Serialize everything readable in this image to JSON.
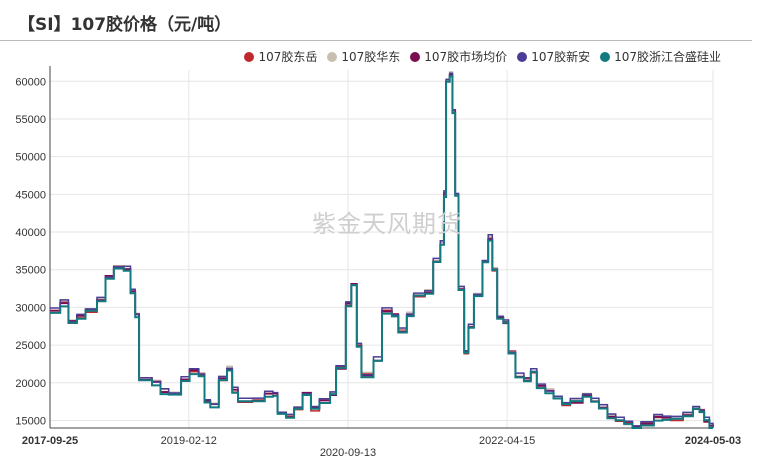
{
  "title": "【SI】107胶价格（元/吨）",
  "watermark": "紫金天风期货",
  "colors": {
    "grid": "#e6e6e6",
    "axis": "#444444",
    "tick_text": "#333333"
  },
  "chart_data": {
    "type": "line",
    "title": "【SI】107胶价格（元/吨）",
    "xlabel": "",
    "ylabel": "",
    "x_type": "date",
    "xlim": [
      "2017-09-25",
      "2024-05-03"
    ],
    "ylim": [
      14000,
      61500
    ],
    "yticks": [
      15000,
      20000,
      25000,
      30000,
      35000,
      40000,
      45000,
      50000,
      55000,
      60000
    ],
    "xticks": [
      {
        "label": "2017-09-25",
        "date": "2017-09-25",
        "bold": true
      },
      {
        "label": "2019-02-12",
        "date": "2019-02-12",
        "bold": false
      },
      {
        "label": "2020-09-13",
        "date": "2020-09-13",
        "bold": false
      },
      {
        "label": "2022-04-15",
        "date": "2022-04-15",
        "bold": false
      },
      {
        "label": "2024-05-03",
        "date": "2024-05-03",
        "bold": true
      }
    ],
    "legend_position": "top-right",
    "grid": true,
    "base": [
      [
        "2017-09-25",
        29500
      ],
      [
        "2017-11-01",
        30500
      ],
      [
        "2017-12-01",
        28000
      ],
      [
        "2018-01-01",
        28800
      ],
      [
        "2018-02-01",
        29500
      ],
      [
        "2018-03-15",
        31000
      ],
      [
        "2018-04-15",
        34000
      ],
      [
        "2018-05-15",
        35300
      ],
      [
        "2018-06-20",
        35000
      ],
      [
        "2018-07-15",
        32000
      ],
      [
        "2018-08-01",
        29000
      ],
      [
        "2018-08-15",
        20500
      ],
      [
        "2018-10-01",
        20000
      ],
      [
        "2018-11-01",
        18800
      ],
      [
        "2018-12-01",
        18500
      ],
      [
        "2019-01-15",
        20500
      ],
      [
        "2019-02-15",
        21500
      ],
      [
        "2019-03-20",
        21000
      ],
      [
        "2019-04-10",
        17500
      ],
      [
        "2019-05-01",
        17000
      ],
      [
        "2019-06-01",
        20500
      ],
      [
        "2019-07-01",
        21800
      ],
      [
        "2019-07-20",
        19000
      ],
      [
        "2019-08-10",
        17500
      ],
      [
        "2019-10-01",
        17800
      ],
      [
        "2019-11-15",
        18500
      ],
      [
        "2019-12-15",
        18500
      ],
      [
        "2020-01-01",
        16000
      ],
      [
        "2020-02-01",
        15500
      ],
      [
        "2020-03-01",
        16500
      ],
      [
        "2020-04-01",
        18500
      ],
      [
        "2020-05-01",
        16500
      ],
      [
        "2020-06-01",
        17500
      ],
      [
        "2020-07-10",
        18500
      ],
      [
        "2020-08-01",
        22000
      ],
      [
        "2020-09-05",
        30500
      ],
      [
        "2020-09-25",
        33000
      ],
      [
        "2020-10-15",
        25000
      ],
      [
        "2020-11-01",
        21000
      ],
      [
        "2020-12-15",
        23000
      ],
      [
        "2021-01-15",
        29500
      ],
      [
        "2021-02-20",
        29000
      ],
      [
        "2021-03-15",
        27000
      ],
      [
        "2021-04-15",
        29000
      ],
      [
        "2021-05-10",
        31500
      ],
      [
        "2021-06-20",
        32000
      ],
      [
        "2021-07-20",
        36000
      ],
      [
        "2021-08-15",
        38500
      ],
      [
        "2021-08-28",
        45000
      ],
      [
        "2021-09-05",
        60000
      ],
      [
        "2021-09-18",
        61000
      ],
      [
        "2021-09-28",
        56000
      ],
      [
        "2021-10-08",
        45000
      ],
      [
        "2021-10-20",
        32500
      ],
      [
        "2021-11-10",
        24000
      ],
      [
        "2021-11-25",
        27500
      ],
      [
        "2021-12-15",
        31500
      ],
      [
        "2022-01-15",
        36000
      ],
      [
        "2022-02-05",
        39200
      ],
      [
        "2022-02-20",
        35000
      ],
      [
        "2022-03-10",
        28500
      ],
      [
        "2022-04-01",
        28000
      ],
      [
        "2022-04-20",
        24000
      ],
      [
        "2022-05-15",
        21000
      ],
      [
        "2022-06-15",
        20500
      ],
      [
        "2022-07-10",
        21500
      ],
      [
        "2022-08-01",
        19500
      ],
      [
        "2022-09-01",
        18800
      ],
      [
        "2022-10-01",
        18000
      ],
      [
        "2022-11-01",
        17200
      ],
      [
        "2022-12-01",
        17500
      ],
      [
        "2023-01-15",
        18200
      ],
      [
        "2023-02-15",
        17500
      ],
      [
        "2023-03-15",
        16800
      ],
      [
        "2023-04-15",
        15500
      ],
      [
        "2023-05-15",
        15000
      ],
      [
        "2023-06-15",
        14500
      ],
      [
        "2023-07-15",
        14200
      ],
      [
        "2023-08-15",
        14500
      ],
      [
        "2023-10-01",
        15300
      ],
      [
        "2023-11-01",
        15400
      ],
      [
        "2023-12-01",
        15200
      ],
      [
        "2024-01-15",
        15800
      ],
      [
        "2024-02-20",
        16500
      ],
      [
        "2024-03-15",
        16200
      ],
      [
        "2024-04-01",
        15000
      ],
      [
        "2024-04-20",
        14300
      ],
      [
        "2024-05-03",
        14000
      ]
    ],
    "series": [
      {
        "name": "107胶东岳",
        "color": "#c0282d",
        "offset": 0,
        "jitter": 250,
        "seed": 11,
        "stroke": 1.5
      },
      {
        "name": "107胶华东",
        "color": "#c9bfb0",
        "offset": 150,
        "jitter": 250,
        "seed": 23,
        "stroke": 1.5
      },
      {
        "name": "107胶市场均价",
        "color": "#7a0d4f",
        "offset": 0,
        "jitter": 200,
        "seed": 37,
        "stroke": 1.8
      },
      {
        "name": "107胶新安",
        "color": "#4a3d96",
        "offset": 250,
        "jitter": 250,
        "seed": 41,
        "stroke": 1.5
      },
      {
        "name": "107胶浙江合盛硅业",
        "color": "#137a80",
        "offset": -150,
        "jitter": 220,
        "seed": 53,
        "stroke": 2
      }
    ]
  }
}
